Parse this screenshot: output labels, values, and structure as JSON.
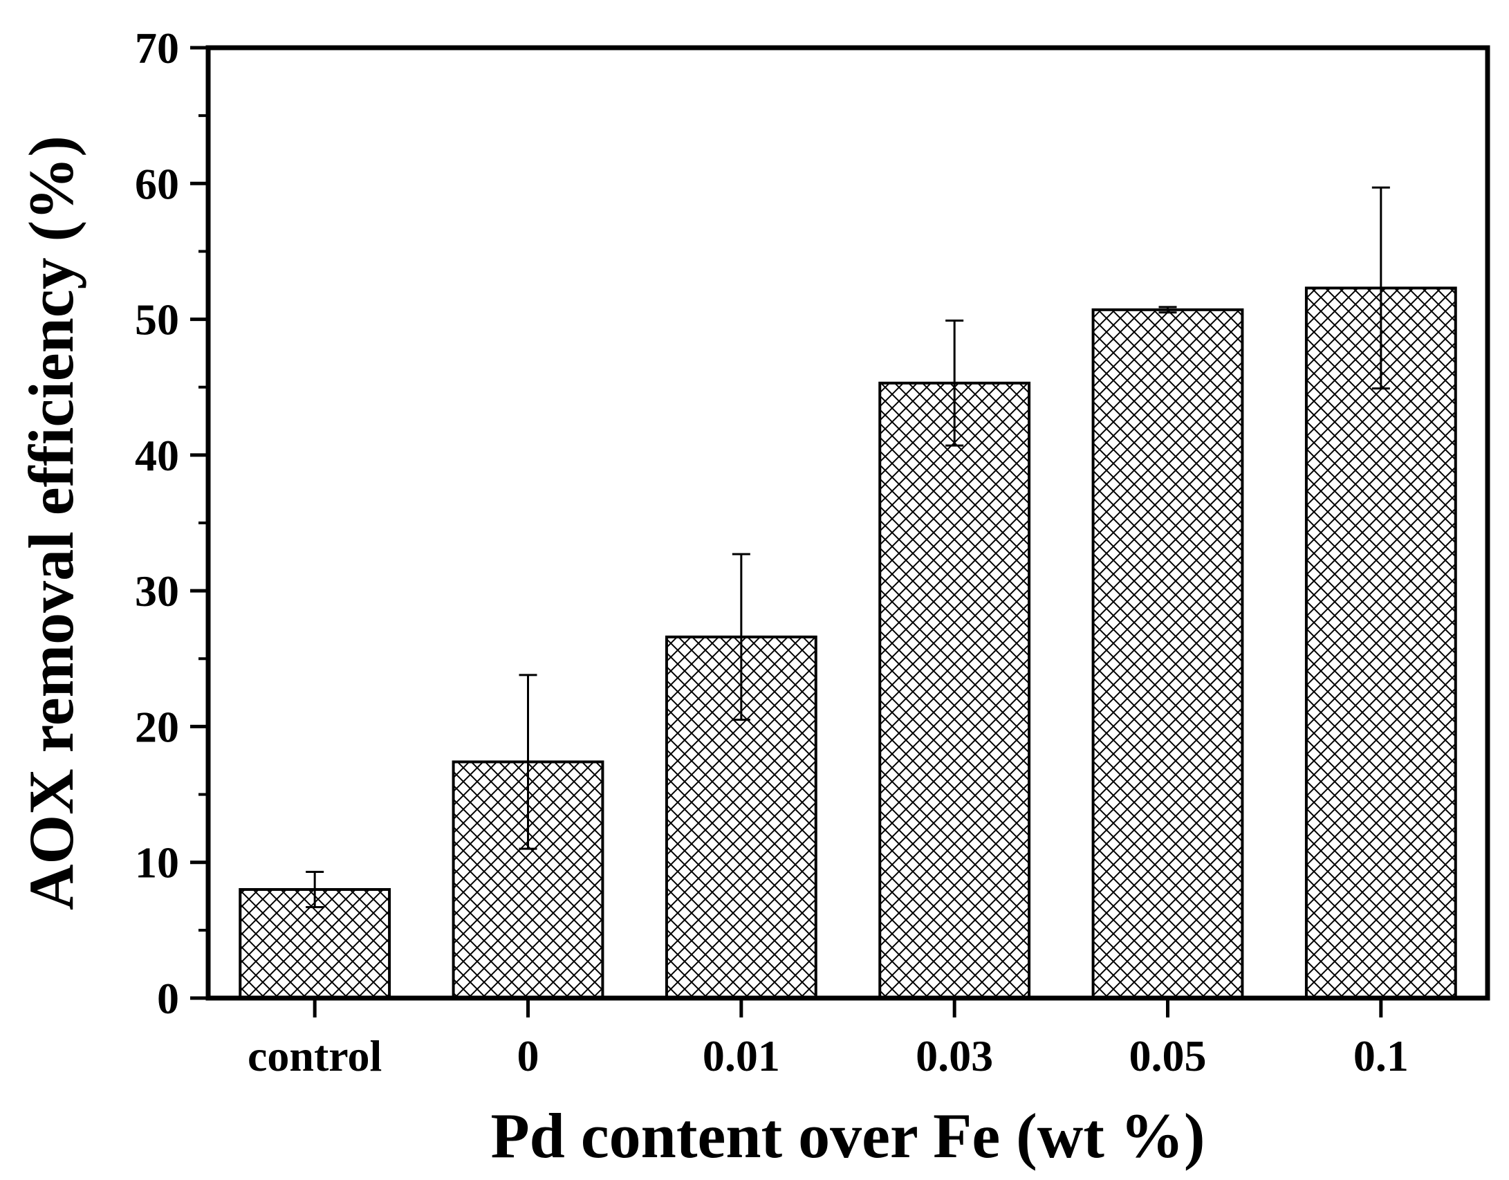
{
  "chart_data": {
    "type": "bar",
    "title": "",
    "xlabel": "Pd content over Fe (wt %)",
    "ylabel": "AOX removal efficiency (%)",
    "categories": [
      "control",
      "0",
      "0.01",
      "0.03",
      "0.05",
      "0.1"
    ],
    "values": [
      8.0,
      17.4,
      26.6,
      45.3,
      50.7,
      52.3
    ],
    "error": [
      1.3,
      6.4,
      6.1,
      4.6,
      0.2,
      7.4
    ],
    "ylim": [
      0,
      70
    ],
    "yticks": [
      0,
      10,
      20,
      30,
      40,
      50,
      60,
      70
    ],
    "y_minor_step": 5,
    "grid": false,
    "legend": "none",
    "bar_fill": "cross-hatch",
    "colors": {
      "bar_edge": "#000000",
      "hatch": "#000000",
      "background": "#ffffff",
      "axes": "#000000"
    }
  }
}
